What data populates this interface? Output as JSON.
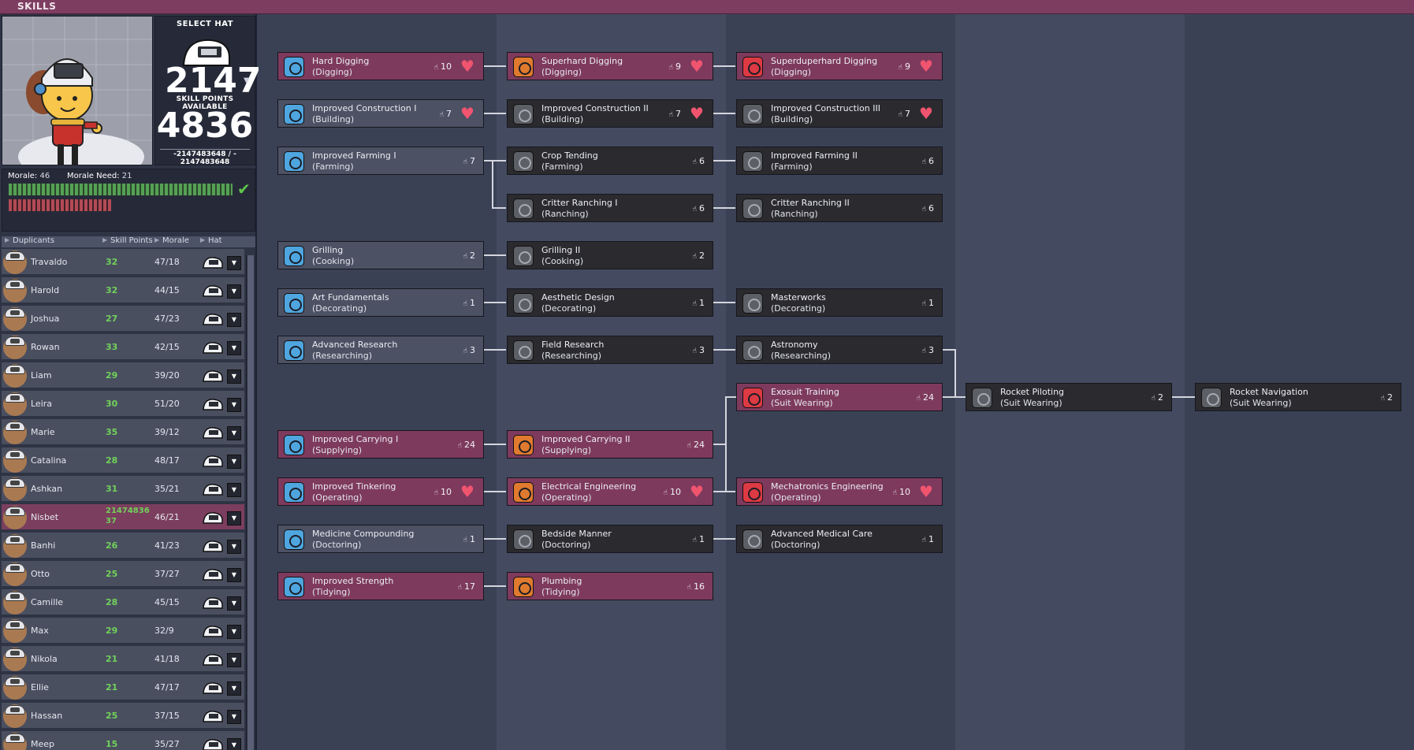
{
  "window": {
    "title": "SKILLS"
  },
  "hat": {
    "select_label": "SELECT HAT",
    "big_number": "2147",
    "skill_points_label": "SKILL POINTS AVAILABLE",
    "skill_points": "4836",
    "small_line1": "-2147483648 / -",
    "small_line2": "2147483648"
  },
  "morale": {
    "morale_label": "Morale:",
    "morale_value": "46",
    "need_label": "Morale Need:",
    "need_value": "21"
  },
  "list_header": {
    "duplicants": "Duplicants",
    "skill_points": "Skill Points",
    "morale": "Morale",
    "hat": "Hat"
  },
  "duplicants": [
    {
      "name": "Travaldo",
      "points": "32",
      "morale": "47/18"
    },
    {
      "name": "Harold",
      "points": "32",
      "morale": "44/15"
    },
    {
      "name": "Joshua",
      "points": "27",
      "morale": "47/23"
    },
    {
      "name": "Rowan",
      "points": "33",
      "morale": "42/15"
    },
    {
      "name": "Liam",
      "points": "29",
      "morale": "39/20"
    },
    {
      "name": "Leira",
      "points": "30",
      "morale": "51/20"
    },
    {
      "name": "Marie",
      "points": "35",
      "morale": "39/12"
    },
    {
      "name": "Catalina",
      "points": "28",
      "morale": "48/17"
    },
    {
      "name": "Ashkan",
      "points": "31",
      "morale": "35/21"
    },
    {
      "name": "Nisbet",
      "points": "2147483637",
      "morale": "46/21",
      "selected": true
    },
    {
      "name": "Banhi",
      "points": "26",
      "morale": "41/23"
    },
    {
      "name": "Otto",
      "points": "25",
      "morale": "37/27"
    },
    {
      "name": "Camille",
      "points": "28",
      "morale": "45/15"
    },
    {
      "name": "Max",
      "points": "29",
      "morale": "32/9"
    },
    {
      "name": "Nikola",
      "points": "21",
      "morale": "41/18"
    },
    {
      "name": "Ellie",
      "points": "21",
      "morale": "47/17"
    },
    {
      "name": "Hassan",
      "points": "25",
      "morale": "37/15"
    },
    {
      "name": "Meep",
      "points": "15",
      "morale": "35/27"
    }
  ],
  "skills": [
    {
      "name": "Hard Digging",
      "group": "(Digging)",
      "count": "10",
      "heart": true,
      "style": "pink",
      "icon": "blue"
    },
    {
      "name": "Superhard Digging",
      "group": "(Digging)",
      "count": "9",
      "heart": true,
      "style": "pink",
      "icon": "orange"
    },
    {
      "name": "Superduperhard Digging",
      "group": "(Digging)",
      "count": "9",
      "heart": true,
      "style": "pink",
      "icon": "red"
    },
    {
      "name": "Improved Construction I",
      "group": "(Building)",
      "count": "7",
      "heart": true,
      "style": "grey",
      "icon": "blue"
    },
    {
      "name": "Improved Construction II",
      "group": "(Building)",
      "count": "7",
      "heart": true,
      "style": "dark",
      "icon": "gray"
    },
    {
      "name": "Improved Construction III",
      "group": "(Building)",
      "count": "7",
      "heart": true,
      "style": "dark",
      "icon": "gray"
    },
    {
      "name": "Improved Farming I",
      "group": "(Farming)",
      "count": "7",
      "heart": false,
      "style": "grey",
      "icon": "blue"
    },
    {
      "name": "Crop Tending",
      "group": "(Farming)",
      "count": "6",
      "heart": false,
      "style": "dark",
      "icon": "gray"
    },
    {
      "name": "Improved Farming II",
      "group": "(Farming)",
      "count": "6",
      "heart": false,
      "style": "dark",
      "icon": "gray"
    },
    {
      "name": "Critter Ranching I",
      "group": "(Ranching)",
      "count": "6",
      "heart": false,
      "style": "dark",
      "icon": "gray"
    },
    {
      "name": "Critter Ranching II",
      "group": "(Ranching)",
      "count": "6",
      "heart": false,
      "style": "dark",
      "icon": "gray"
    },
    {
      "name": "Grilling",
      "group": "(Cooking)",
      "count": "2",
      "heart": false,
      "style": "grey",
      "icon": "blue"
    },
    {
      "name": "Grilling II",
      "group": "(Cooking)",
      "count": "2",
      "heart": false,
      "style": "dark",
      "icon": "gray"
    },
    {
      "name": "Art Fundamentals",
      "group": "(Decorating)",
      "count": "1",
      "heart": false,
      "style": "grey",
      "icon": "blue"
    },
    {
      "name": "Aesthetic Design",
      "group": "(Decorating)",
      "count": "1",
      "heart": false,
      "style": "dark",
      "icon": "gray"
    },
    {
      "name": "Masterworks",
      "group": "(Decorating)",
      "count": "1",
      "heart": false,
      "style": "dark",
      "icon": "gray"
    },
    {
      "name": "Advanced Research",
      "group": "(Researching)",
      "count": "3",
      "heart": false,
      "style": "grey",
      "icon": "blue"
    },
    {
      "name": "Field Research",
      "group": "(Researching)",
      "count": "3",
      "heart": false,
      "style": "dark",
      "icon": "gray"
    },
    {
      "name": "Astronomy",
      "group": "(Researching)",
      "count": "3",
      "heart": false,
      "style": "dark",
      "icon": "gray"
    },
    {
      "name": "Exosuit Training",
      "group": "(Suit Wearing)",
      "count": "24",
      "heart": false,
      "style": "pink",
      "icon": "red"
    },
    {
      "name": "Rocket Piloting",
      "group": "(Suit Wearing)",
      "count": "2",
      "heart": false,
      "style": "dark",
      "icon": "gray"
    },
    {
      "name": "Rocket Navigation",
      "group": "(Suit Wearing)",
      "count": "2",
      "heart": false,
      "style": "dark",
      "icon": "gray"
    },
    {
      "name": "Improved Carrying I",
      "group": "(Supplying)",
      "count": "24",
      "heart": false,
      "style": "pink",
      "icon": "blue"
    },
    {
      "name": "Improved Carrying II",
      "group": "(Supplying)",
      "count": "24",
      "heart": false,
      "style": "pink",
      "icon": "orange"
    },
    {
      "name": "Improved Tinkering",
      "group": "(Operating)",
      "count": "10",
      "heart": true,
      "style": "pink",
      "icon": "blue"
    },
    {
      "name": "Electrical Engineering",
      "group": "(Operating)",
      "count": "10",
      "heart": true,
      "style": "pink",
      "icon": "orange"
    },
    {
      "name": "Mechatronics Engineering",
      "group": "(Operating)",
      "count": "10",
      "heart": true,
      "style": "pink",
      "icon": "red"
    },
    {
      "name": "Medicine Compounding",
      "group": "(Doctoring)",
      "count": "1",
      "heart": false,
      "style": "grey",
      "icon": "blue"
    },
    {
      "name": "Bedside Manner",
      "group": "(Doctoring)",
      "count": "1",
      "heart": false,
      "style": "dark",
      "icon": "gray"
    },
    {
      "name": "Advanced Medical Care",
      "group": "(Doctoring)",
      "count": "1",
      "heart": false,
      "style": "dark",
      "icon": "gray"
    },
    {
      "name": "Improved Strength",
      "group": "(Tidying)",
      "count": "17",
      "heart": false,
      "style": "pink",
      "icon": "blue"
    },
    {
      "name": "Plumbing",
      "group": "(Tidying)",
      "count": "16",
      "heart": false,
      "style": "pink",
      "icon": "orange"
    }
  ]
}
